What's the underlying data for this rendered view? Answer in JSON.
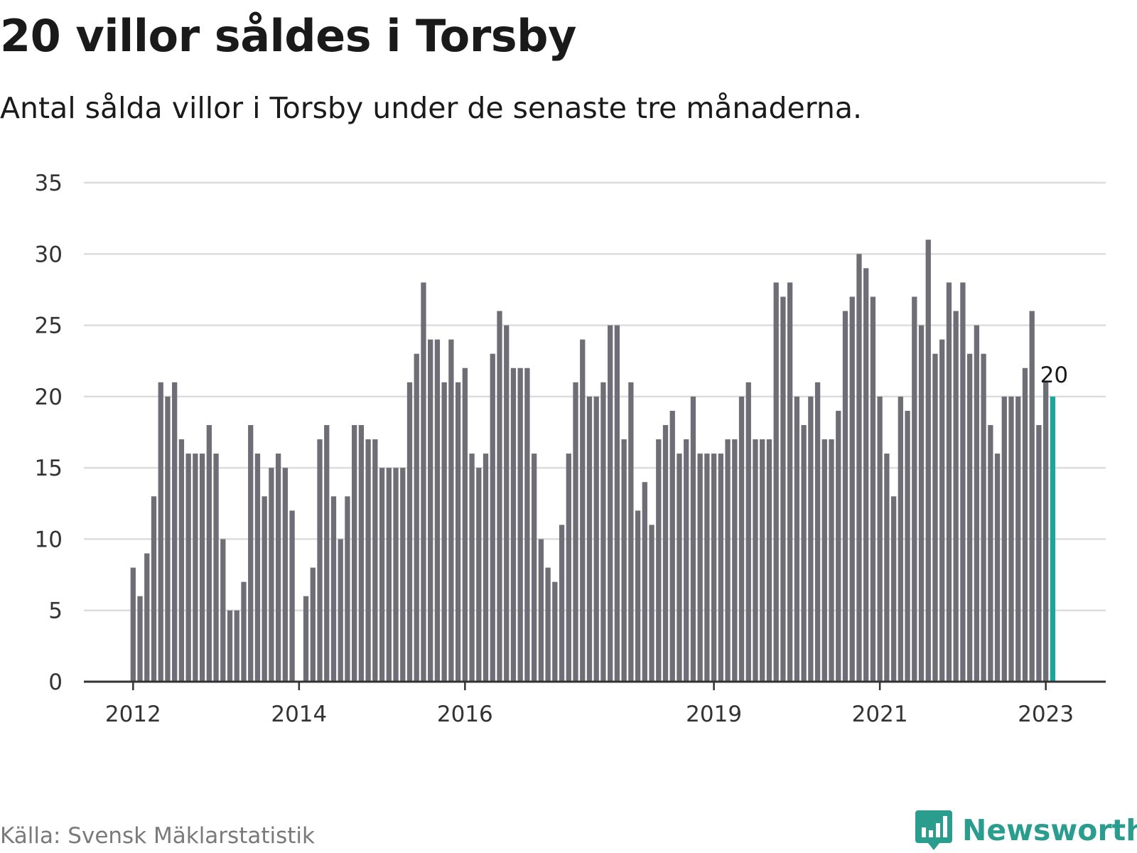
{
  "title": "20 villor såldes i Torsby",
  "subtitle": "Antal sålda villor i Torsby under de senaste tre månaderna.",
  "source": "Källa: Svensk Mäklarstatistik",
  "brand": {
    "name": "Newsworthy",
    "logo_icon": "newsworthy-bar-chart-icon"
  },
  "colors": {
    "bar": "#6f6e76",
    "highlight": "#1aa69b",
    "grid": "#dddddd",
    "axis": "#333333",
    "brand": "#2a9d8f"
  },
  "chart_data": {
    "type": "bar",
    "x_tick_labels": [
      "2012",
      "2014",
      "2016",
      "2019",
      "2021",
      "2023"
    ],
    "x_tick_positions": [
      0,
      24,
      48,
      84,
      108,
      132
    ],
    "ylim": [
      0,
      35
    ],
    "y_ticks": [
      0,
      5,
      10,
      15,
      20,
      25,
      30,
      35
    ],
    "grid": true,
    "values": [
      8,
      6,
      9,
      13,
      21,
      20,
      21,
      17,
      16,
      16,
      16,
      18,
      16,
      10,
      5,
      5,
      7,
      18,
      16,
      13,
      15,
      16,
      15,
      12,
      0,
      6,
      8,
      17,
      18,
      13,
      10,
      13,
      18,
      18,
      17,
      17,
      15,
      15,
      15,
      15,
      21,
      23,
      28,
      24,
      24,
      21,
      24,
      21,
      22,
      16,
      15,
      16,
      23,
      26,
      25,
      22,
      22,
      22,
      16,
      10,
      8,
      7,
      11,
      16,
      21,
      24,
      20,
      20,
      21,
      25,
      25,
      17,
      21,
      12,
      14,
      11,
      17,
      18,
      19,
      16,
      17,
      20,
      16,
      16,
      16,
      16,
      17,
      17,
      20,
      21,
      17,
      17,
      17,
      28,
      27,
      28,
      20,
      18,
      20,
      21,
      17,
      17,
      19,
      26,
      27,
      30,
      29,
      27,
      20,
      16,
      13,
      20,
      19,
      27,
      25,
      31,
      23,
      24,
      28,
      26,
      28,
      23,
      25,
      23,
      18,
      16,
      20,
      20,
      20,
      22,
      26,
      18,
      21,
      20
    ],
    "highlight_index": 133,
    "highlight_label": "20"
  }
}
